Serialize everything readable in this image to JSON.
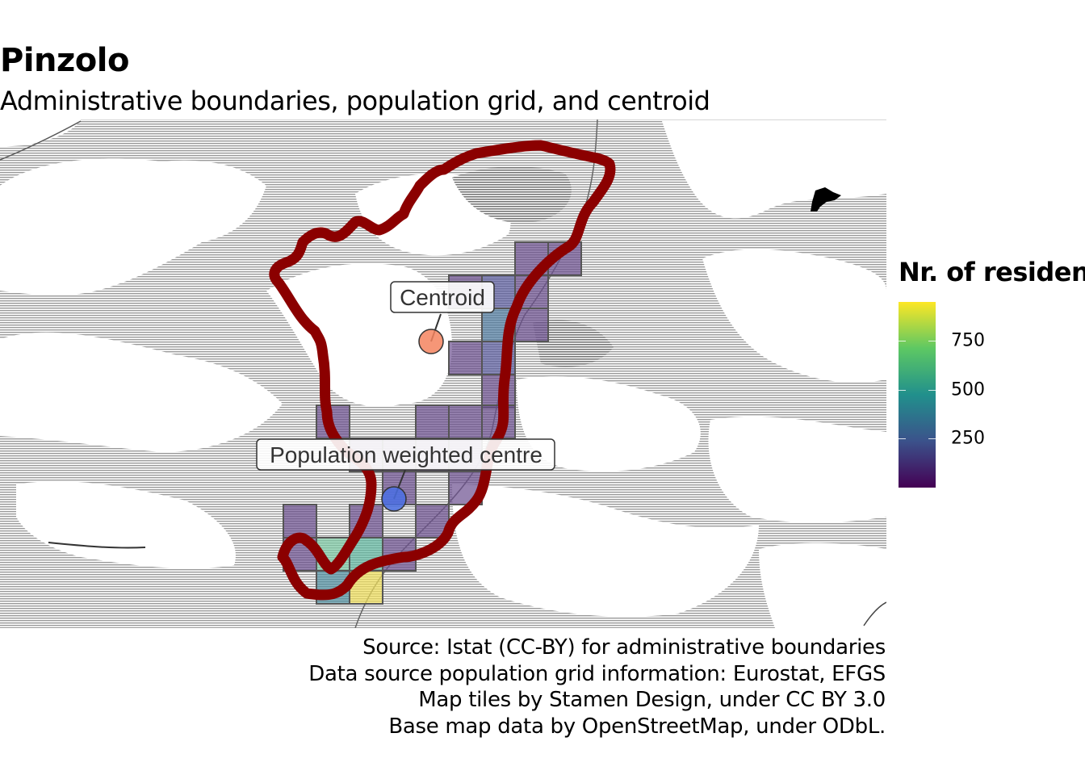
{
  "map": {
    "title": "Pinzolo",
    "subtitle": "Administrative boundaries, population grid, and centroid",
    "labels": {
      "centroid": "Centroid",
      "population_centre": "Population weighted centre"
    },
    "legend": {
      "title": "Nr. of residents",
      "ticks": [
        {
          "value": 750,
          "label": "750"
        },
        {
          "value": 500,
          "label": "500"
        },
        {
          "value": 250,
          "label": "250"
        }
      ],
      "range": [
        0,
        950
      ],
      "palette": "viridis"
    },
    "caption": [
      "Source: Istat (CC-BY) for administrative boundaries",
      "Data source population grid information: Eurostat, EFGS",
      "Map tiles by Stamen Design, under CC BY 3.0",
      "Base map data by OpenStreetMap, under ODbL."
    ],
    "colors": {
      "boundary": "#8b0000",
      "centroid": "#f4845f",
      "population_centre": "#4a6fe3"
    }
  }
}
